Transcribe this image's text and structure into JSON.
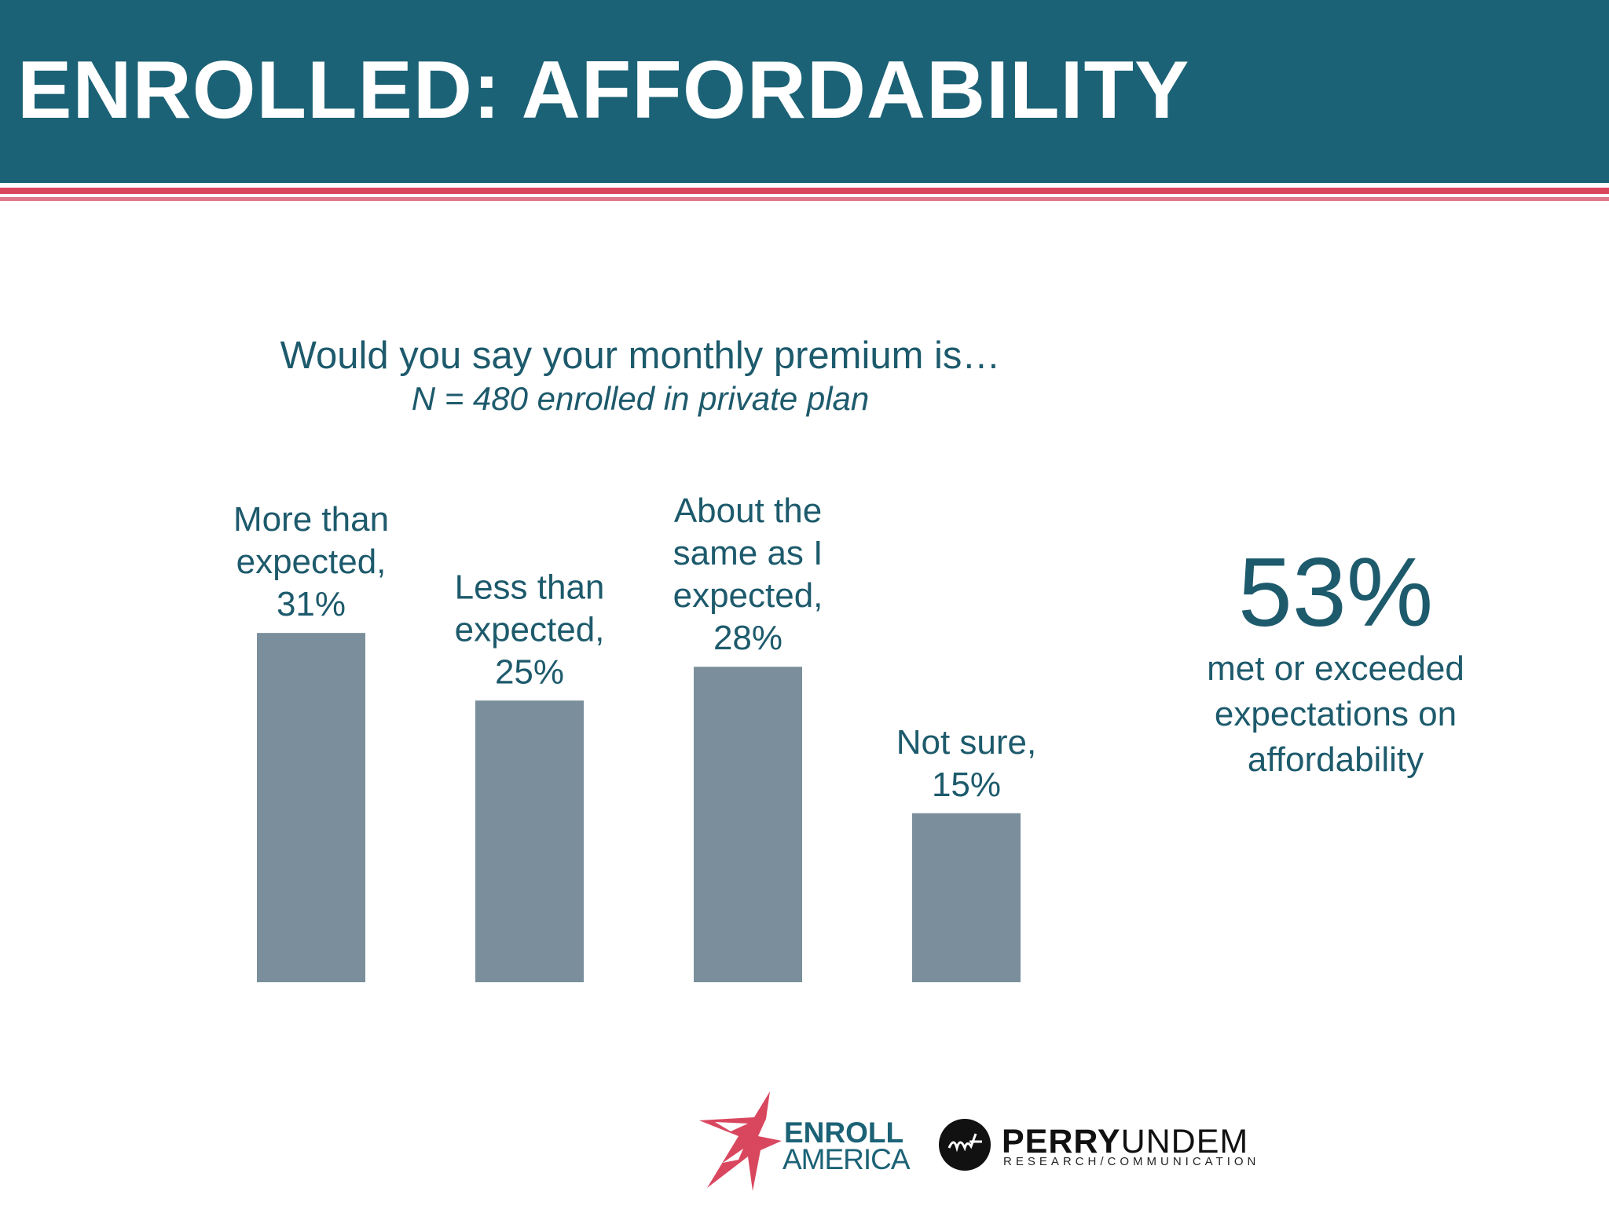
{
  "header": {
    "title": "ENROLLED: AFFORDABILITY"
  },
  "question": "Would you say your monthly premium is…",
  "subtitle": "N = 480 enrolled in private plan",
  "chart_data": {
    "type": "bar",
    "title": "Would you say your monthly premium is…",
    "subtitle": "N = 480 enrolled in private plan",
    "categories": [
      "More than expected",
      "Less than expected",
      "About the same as I expected",
      "Not sure"
    ],
    "values": [
      31,
      25,
      28,
      15
    ],
    "unit": "%",
    "label_lines": [
      [
        "More than",
        "expected,",
        "31%"
      ],
      [
        "Less than",
        "expected,",
        "25%"
      ],
      [
        "About the",
        "same as I",
        "expected,",
        "28%"
      ],
      [
        "Not sure,",
        "15%"
      ]
    ],
    "bar_color": "#7a8f9b",
    "label_color": "#1d5a6c",
    "ylim": [
      0,
      31
    ],
    "grid": false,
    "legend": "none"
  },
  "stat": {
    "value": "53%",
    "lines": [
      "met or exceeded",
      "expectations on",
      "affordability"
    ]
  },
  "logos": {
    "enroll_line1": "ENROLL",
    "enroll_line2": "AMERICA",
    "perry_bold": "PERRY",
    "perry_light": "UNDEM",
    "perry_sub": "RESEARCH/COMMUNICATION"
  },
  "colors": {
    "header_bg": "#1c6276",
    "accent_red": "#d9475f",
    "text_teal": "#1d5a6c"
  }
}
